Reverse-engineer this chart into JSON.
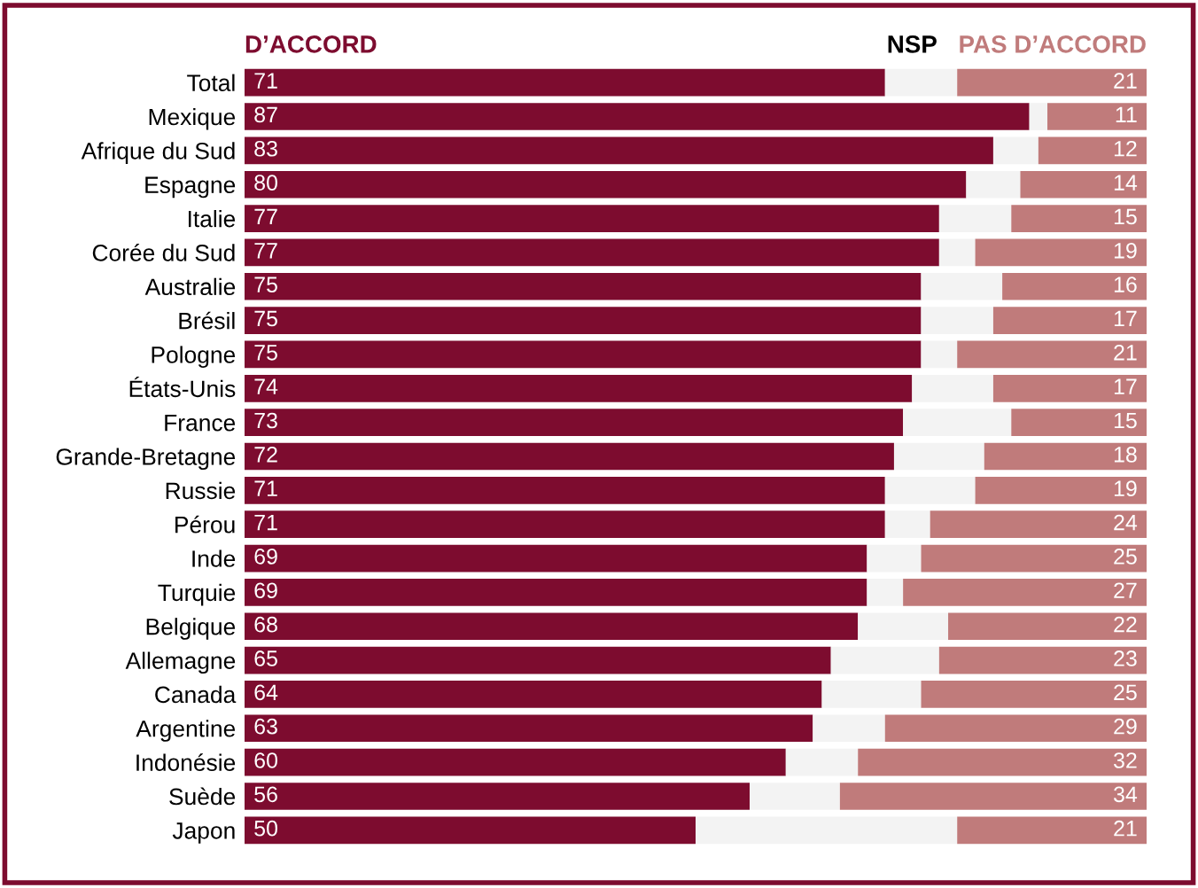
{
  "chart_data": {
    "type": "bar",
    "orientation": "horizontal",
    "stacked": true,
    "categories": [
      "Total",
      "Mexique",
      "Afrique du Sud",
      "Espagne",
      "Italie",
      "Corée du Sud",
      "Australie",
      "Brésil",
      "Pologne",
      "États-Unis",
      "France",
      "Grande-Bretagne",
      "Russie",
      "Pérou",
      "Inde",
      "Turquie",
      "Belgique",
      "Allemagne",
      "Canada",
      "Argentine",
      "Indonésie",
      "Suède",
      "Japon"
    ],
    "series": [
      {
        "name": "D’ACCORD",
        "color": "#7d0c2f",
        "values": [
          71,
          87,
          83,
          80,
          77,
          77,
          75,
          75,
          75,
          74,
          73,
          72,
          71,
          71,
          69,
          69,
          68,
          65,
          64,
          63,
          60,
          56,
          50
        ],
        "value_labels": [
          "71",
          "87",
          "83",
          "80",
          "77",
          "77",
          "75",
          "75",
          "75",
          "74",
          "73",
          "72",
          "71",
          "71",
          "69",
          "69",
          "68",
          "65",
          "64",
          "63",
          "60",
          "56",
          "50"
        ]
      },
      {
        "name": "NSP",
        "color": "#f3f3f3",
        "values": [
          8,
          2,
          5,
          6,
          8,
          4,
          9,
          8,
          4,
          9,
          12,
          10,
          10,
          5,
          6,
          4,
          10,
          12,
          11,
          8,
          8,
          10,
          29
        ]
      },
      {
        "name": "PAS D’ACCORD",
        "color": "#c07b7b",
        "values": [
          21,
          11,
          12,
          14,
          15,
          19,
          16,
          17,
          21,
          17,
          15,
          18,
          19,
          24,
          25,
          27,
          22,
          23,
          25,
          29,
          32,
          34,
          21
        ],
        "value_labels": [
          "21",
          "11",
          "12",
          "14",
          "15",
          "19",
          "16",
          "17",
          "21",
          "17",
          "15",
          "18",
          "19",
          "24",
          "25",
          "27",
          "22",
          "23",
          "25",
          "29",
          "32",
          "34",
          "21"
        ]
      }
    ],
    "xlim": [
      0,
      100
    ],
    "tick_labels": "y",
    "legend": "top",
    "grid": false
  }
}
